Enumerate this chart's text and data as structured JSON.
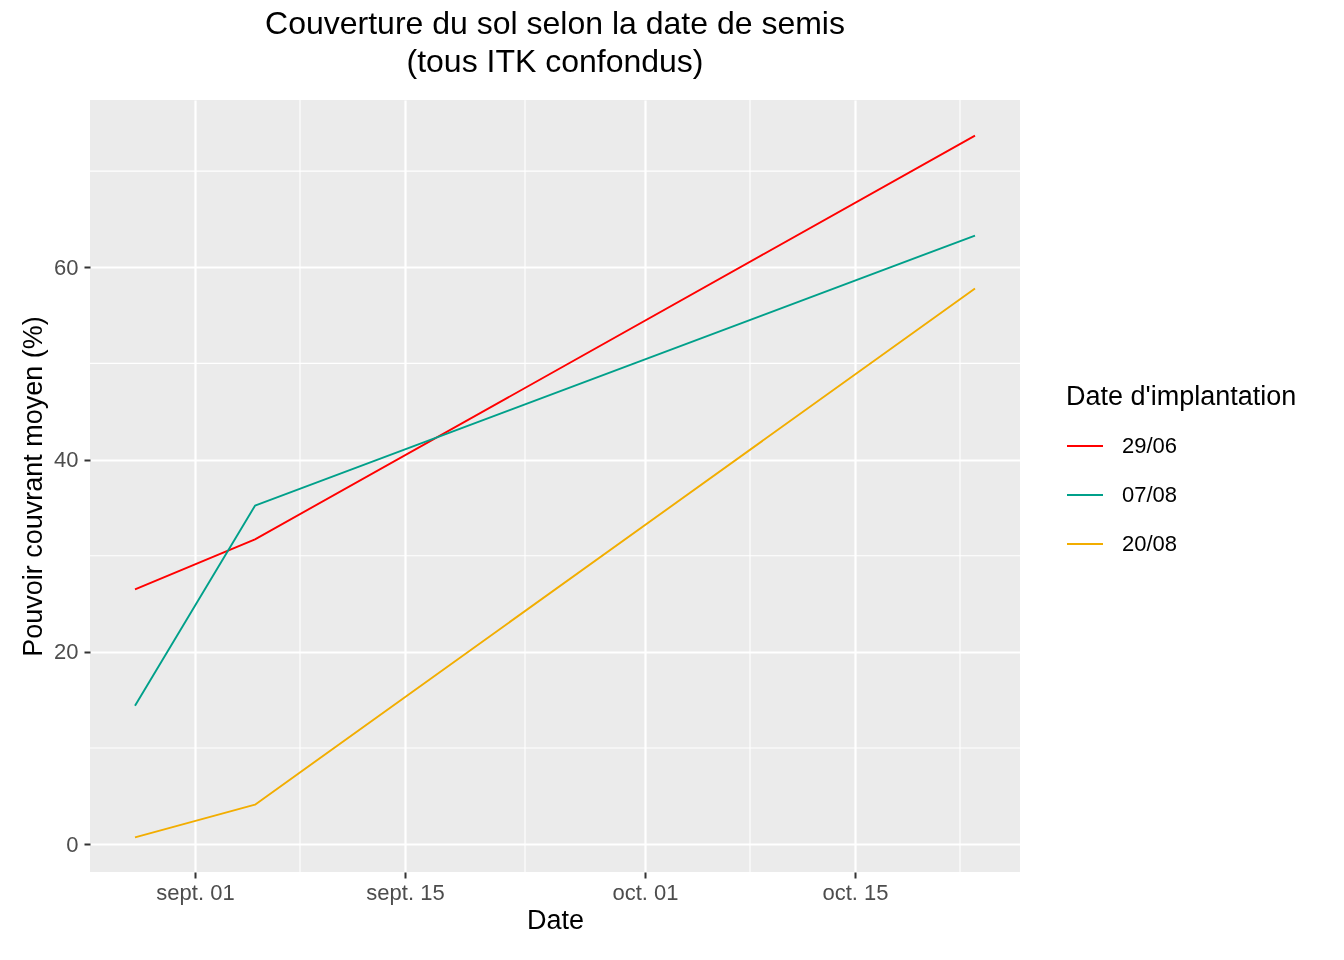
{
  "chart_data": {
    "type": "line",
    "title": "Couverture du sol selon la date de semis\n(tous ITK confondus)",
    "xlabel": "Date",
    "ylabel": "Pouvoir couvrant moyen (%)",
    "legend_title": "Date d'implantation",
    "x": [
      "--08-28",
      "--09-05",
      "--10-23"
    ],
    "series": [
      {
        "name": "29/06",
        "color": "#ff0000",
        "values": [
          26.5,
          31.7,
          73.7
        ]
      },
      {
        "name": "07/08",
        "color": "#00a08a",
        "values": [
          14.4,
          35.2,
          63.3
        ]
      },
      {
        "name": "20/08",
        "color": "#f2ad00",
        "values": [
          0.7,
          4.1,
          57.8
        ]
      }
    ],
    "xlim": [
      "--08-25",
      "--10-26"
    ],
    "ylim": [
      -2.9,
      77.4
    ],
    "xticks": [
      {
        "value": "--09-01",
        "label": "sept. 01"
      },
      {
        "value": "--09-08",
        "label": null
      },
      {
        "value": "--09-15",
        "label": "sept. 15"
      },
      {
        "value": "--09-23",
        "label": null
      },
      {
        "value": "--10-01",
        "label": "oct. 01"
      },
      {
        "value": "--10-08",
        "label": null
      },
      {
        "value": "--10-15",
        "label": "oct. 15"
      },
      {
        "value": "--10-22",
        "label": null
      }
    ],
    "yticks": [
      0,
      {
        "value": 10,
        "label": null
      },
      20,
      {
        "value": 30,
        "label": null
      },
      40,
      {
        "value": 50,
        "label": null
      },
      60,
      {
        "value": 70,
        "label": null
      }
    ],
    "grid": true,
    "legend": "right"
  }
}
